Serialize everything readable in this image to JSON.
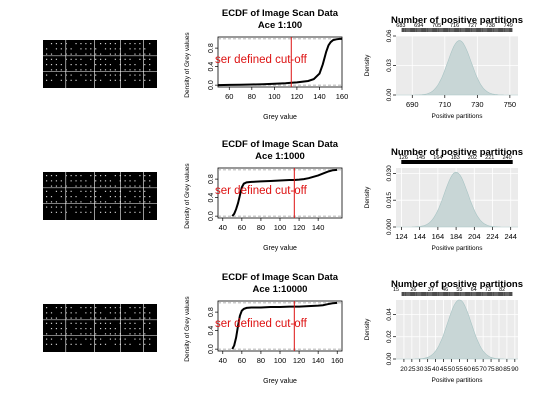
{
  "chart_data": [
    {
      "row": 1,
      "kind": "scan_image",
      "type": "heatmap"
    },
    {
      "row": 1,
      "kind": "ecdf",
      "type": "line",
      "title": "ECDF of Image Scan Data",
      "subtitle": "Ace 1:100",
      "xlabel": "Grey value",
      "ylabel": "Density of Grey values",
      "xlim": [
        50,
        160
      ],
      "xticks": [
        60,
        80,
        100,
        120,
        140,
        160
      ],
      "ylim": [
        0,
        1
      ],
      "yticks": [
        "0.0",
        "0.4",
        "0.8"
      ],
      "cutoff": 115,
      "cutoff_label": "ser defined cut-off",
      "x": [
        50,
        60,
        70,
        80,
        90,
        100,
        110,
        115,
        120,
        130,
        135,
        140,
        143,
        146,
        148,
        150,
        152,
        155,
        158,
        160
      ],
      "y": [
        0.0,
        0.005,
        0.01,
        0.015,
        0.02,
        0.03,
        0.04,
        0.05,
        0.06,
        0.09,
        0.13,
        0.25,
        0.45,
        0.72,
        0.86,
        0.93,
        0.97,
        0.99,
        1.0,
        1.0
      ]
    },
    {
      "row": 1,
      "kind": "hist",
      "type": "area",
      "title": "Number of positive partitions",
      "xlabel": "Positive partitions",
      "ylabel": "Density",
      "xlim": [
        680,
        755
      ],
      "xticks": [
        690,
        710,
        730,
        750
      ],
      "ylim": [
        0,
        0.06
      ],
      "yticks": [
        "0.00",
        "0.03",
        "0.06"
      ],
      "top_ticks": [
        683,
        694,
        705,
        716,
        727,
        738,
        749
      ],
      "mean": 719,
      "sd": 7.2
    },
    {
      "row": 2,
      "kind": "scan_image",
      "type": "heatmap"
    },
    {
      "row": 2,
      "kind": "ecdf",
      "type": "line",
      "title": "ECDF of Image Scan Data",
      "subtitle": "Ace 1:1000",
      "xlabel": "Grey value",
      "ylabel": "Density of Grey values",
      "xlim": [
        35,
        165
      ],
      "xticks": [
        40,
        60,
        80,
        100,
        120,
        140
      ],
      "ylim": [
        0,
        1
      ],
      "yticks": [
        "0.0",
        "0.4",
        "0.8"
      ],
      "cutoff": 115,
      "cutoff_label": "ser defined cut-off",
      "x": [
        50,
        52,
        54,
        56,
        58,
        60,
        62,
        65,
        70,
        80,
        90,
        100,
        110,
        115,
        120,
        125,
        130,
        135,
        140,
        145,
        150,
        155,
        160
      ],
      "y": [
        0.0,
        0.05,
        0.15,
        0.28,
        0.45,
        0.62,
        0.7,
        0.73,
        0.74,
        0.75,
        0.76,
        0.77,
        0.78,
        0.78,
        0.79,
        0.8,
        0.82,
        0.85,
        0.88,
        0.92,
        0.96,
        0.99,
        1.0
      ]
    },
    {
      "row": 2,
      "kind": "hist",
      "type": "area",
      "title": "Number of positive partitions",
      "xlabel": "Positive partitions",
      "ylabel": "Density",
      "xlim": [
        118,
        252
      ],
      "xticks": [
        124,
        144,
        164,
        184,
        204,
        224,
        244
      ],
      "ylim": [
        0,
        0.033
      ],
      "yticks": [
        "0.000",
        "0.015",
        "0.030"
      ],
      "top_ticks": [
        126,
        145,
        164,
        183,
        202,
        221,
        240
      ],
      "mean": 184,
      "sd": 13
    },
    {
      "row": 3,
      "kind": "scan_image",
      "type": "heatmap"
    },
    {
      "row": 3,
      "kind": "ecdf",
      "type": "line",
      "title": "ECDF of Image Scan Data",
      "subtitle": "Ace 1:10000",
      "xlabel": "Grey value",
      "ylabel": "Density of Grey values",
      "xlim": [
        35,
        165
      ],
      "xticks": [
        40,
        60,
        80,
        100,
        120,
        140,
        160
      ],
      "ylim": [
        0,
        1
      ],
      "yticks": [
        "0.0",
        "0.4",
        "0.8"
      ],
      "cutoff": 115,
      "cutoff_label": "ser defined cut-off",
      "x": [
        50,
        52,
        54,
        56,
        58,
        60,
        62,
        65,
        70,
        80,
        90,
        100,
        110,
        115,
        120,
        130,
        140,
        145,
        150,
        155,
        160
      ],
      "y": [
        0.0,
        0.08,
        0.25,
        0.5,
        0.72,
        0.83,
        0.87,
        0.89,
        0.9,
        0.9,
        0.91,
        0.91,
        0.92,
        0.92,
        0.92,
        0.93,
        0.94,
        0.95,
        0.97,
        0.99,
        1.0
      ]
    },
    {
      "row": 3,
      "kind": "hist",
      "type": "area",
      "title": "Number of positive partitions",
      "xlabel": "Positive partitions",
      "ylabel": "Density",
      "xlim": [
        15,
        92
      ],
      "xticks": [
        20,
        25,
        30,
        35,
        40,
        45,
        50,
        55,
        60,
        65,
        70,
        75,
        80,
        85,
        90
      ],
      "ylim": [
        0,
        0.053
      ],
      "yticks": [
        "0.00",
        "0.02",
        "0.04"
      ],
      "top_ticks": [
        15,
        26,
        37,
        46,
        55,
        64,
        73,
        82
      ],
      "mean": 55,
      "sd": 7.5
    }
  ],
  "colors": {
    "ink": "#000000",
    "cutoff": "#dd1111",
    "hist_fill": "#c8d6d6",
    "hist_outline": "#a8c4c4",
    "panel_bg": "#ebebeb",
    "grid": "#ffffff",
    "dash": "#999999",
    "scan_dot": "#cccccc"
  }
}
